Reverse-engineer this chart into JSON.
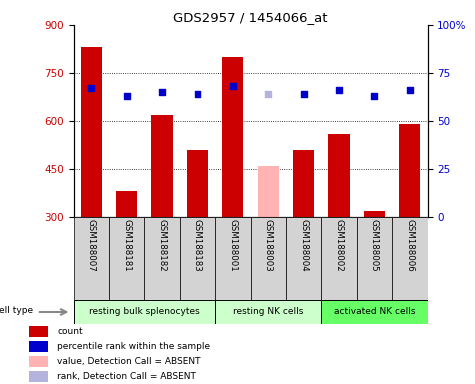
{
  "title": "GDS2957 / 1454066_at",
  "samples": [
    "GSM188007",
    "GSM188181",
    "GSM188182",
    "GSM188183",
    "GSM188001",
    "GSM188003",
    "GSM188004",
    "GSM188002",
    "GSM188005",
    "GSM188006"
  ],
  "counts": [
    830,
    380,
    620,
    510,
    800,
    460,
    510,
    560,
    320,
    590
  ],
  "percentile_ranks": [
    67,
    63,
    65,
    64,
    68,
    64,
    64,
    66,
    63,
    66
  ],
  "absent_flags": [
    false,
    false,
    false,
    false,
    false,
    true,
    false,
    false,
    false,
    false
  ],
  "ylim_left": [
    300,
    900
  ],
  "ylim_right": [
    0,
    100
  ],
  "yticks_left": [
    300,
    450,
    600,
    750,
    900
  ],
  "yticks_right": [
    0,
    25,
    50,
    75,
    100
  ],
  "bar_color_present": "#cc0000",
  "bar_color_absent": "#ffb3b3",
  "dot_color_present": "#0000cc",
  "dot_color_absent": "#b3b3dd",
  "group_spans": [
    {
      "start": 0,
      "end": 3,
      "label": "resting bulk splenocytes",
      "color": "#ccffcc"
    },
    {
      "start": 4,
      "end": 6,
      "label": "resting NK cells",
      "color": "#ccffcc"
    },
    {
      "start": 7,
      "end": 9,
      "label": "activated NK cells",
      "color": "#66ff66"
    }
  ],
  "legend_items": [
    {
      "label": "count",
      "color": "#cc0000"
    },
    {
      "label": "percentile rank within the sample",
      "color": "#0000cc"
    },
    {
      "label": "value, Detection Call = ABSENT",
      "color": "#ffb3b3"
    },
    {
      "label": "rank, Detection Call = ABSENT",
      "color": "#b3b3dd"
    }
  ],
  "sample_bg": "#d3d3d3",
  "plot_bg": "#ffffff"
}
